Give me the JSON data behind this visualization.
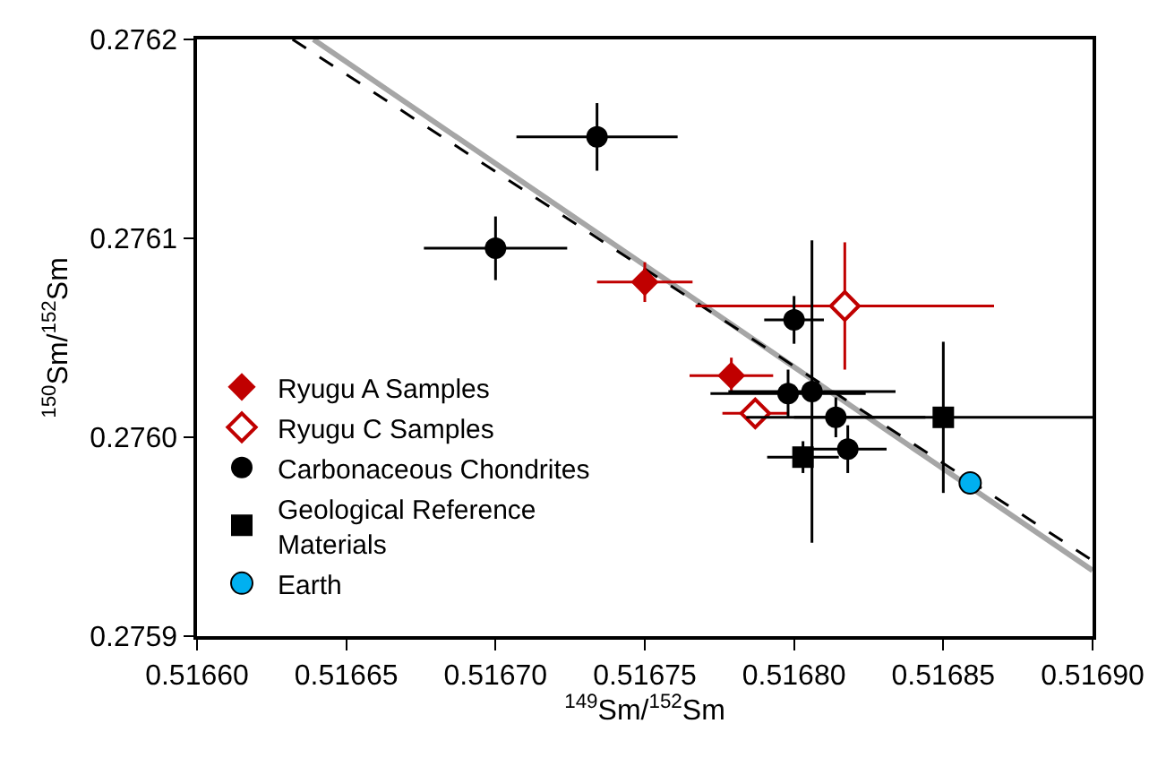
{
  "chart_data": {
    "type": "scatter",
    "xlabel": "$^{149}$Sm/$^{152}$Sm",
    "ylabel": "$^{150}$Sm/$^{152}$Sm",
    "xlim": [
      0.5166,
      0.5169
    ],
    "xticks": [
      {
        "value": 0.5166,
        "label": "0.51660"
      },
      {
        "value": 0.51665,
        "label": "0.51665"
      },
      {
        "value": 0.5167,
        "label": "0.51670"
      },
      {
        "value": 0.51675,
        "label": "0.51675"
      },
      {
        "value": 0.5168,
        "label": "0.51680"
      },
      {
        "value": 0.51685,
        "label": "0.51685"
      },
      {
        "value": 0.5169,
        "label": "0.51690"
      }
    ],
    "ylim": [
      0.2759,
      0.2762
    ],
    "yticks": [
      0.2759,
      {
        "value": 0.276,
        "label": "0.2760"
      },
      0.2761,
      0.2762
    ],
    "legend": "left",
    "series": [
      {
        "type": "line",
        "color": "#a6a6a6",
        "line_style": "solid",
        "marker": "none",
        "x": [
          0.516639,
          0.5169
        ],
        "values": [
          0.2762,
          0.275933
        ]
      },
      {
        "type": "line",
        "color": "#000000",
        "line_style": "dashed",
        "marker": "none",
        "x": [
          0.516632,
          0.5169
        ],
        "values": [
          0.2762,
          0.275938
        ]
      },
      {
        "name": "Ryugu A Samples",
        "color": "#c00000",
        "marker": "diamond",
        "x": [
          0.51675,
          0.516779
        ],
        "values": [
          0.276078,
          0.276031
        ],
        "xerrors": [
          1.6e-05,
          1.4e-05
        ],
        "errors": [
          1e-05,
          9e-06
        ]
      },
      {
        "name": "Ryugu C Samples",
        "color": "#c00000",
        "marker": "diamond-open",
        "x": [
          0.516817,
          0.516787
        ],
        "values": [
          0.276066,
          0.276012
        ],
        "xerrors": [
          5e-05,
          1.1e-05
        ],
        "errors": [
          3.2e-05,
          5e-06
        ]
      },
      {
        "name": "Carbonaceous Chondrites",
        "color": "#000000",
        "marker": "circle",
        "x": [
          0.516734,
          0.5167,
          0.5168,
          0.516798,
          0.516806,
          0.516814,
          0.516818
        ],
        "values": [
          0.276151,
          0.276095,
          0.276059,
          0.276022,
          0.276023,
          0.27601,
          0.275994
        ],
        "xerrors": [
          2.7e-05,
          2.4e-05,
          1e-05,
          2.6e-05,
          2.8e-05,
          3e-05,
          1.3e-05
        ],
        "errors": [
          1.7e-05,
          1.6e-05,
          1.2e-05,
          1.2e-05,
          7.6e-05,
          1e-05,
          1.2e-05
        ]
      },
      {
        "name": "Geological Reference Materials",
        "color": "#000000",
        "marker": "square",
        "x": [
          0.516803,
          0.51685
        ],
        "values": [
          0.27599,
          0.27601
        ],
        "xerrors": [
          1.2e-05,
          5e-05
        ],
        "errors": [
          8e-06,
          3.8e-05
        ]
      },
      {
        "name": "Earth",
        "color": "#00b0f0",
        "marker": "circle-outline",
        "x": [
          0.516859
        ],
        "values": [
          0.275977
        ]
      }
    ]
  }
}
